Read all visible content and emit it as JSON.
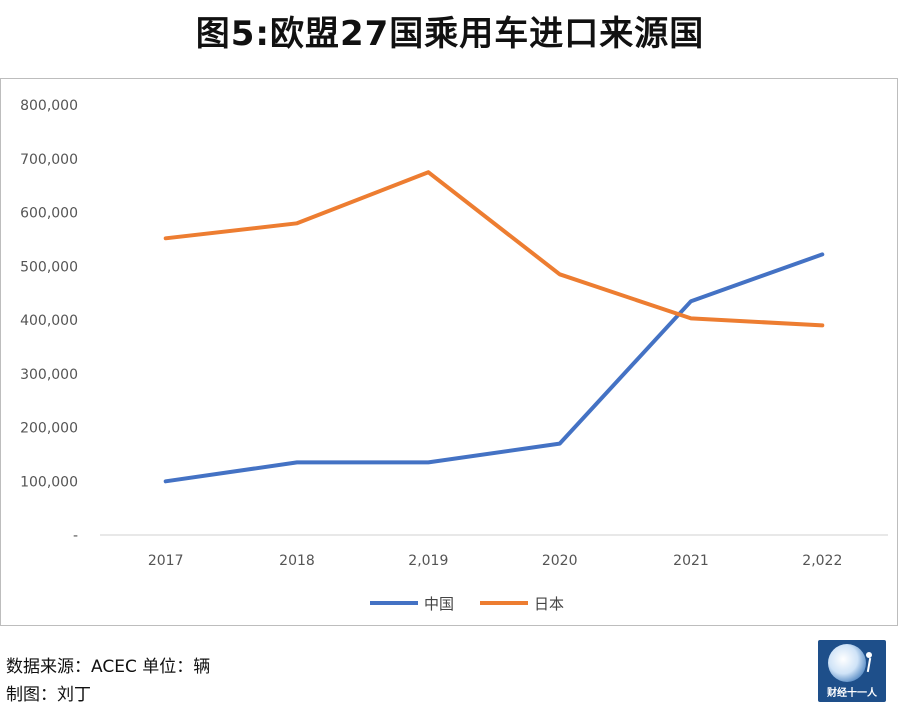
{
  "title": "图5:欧盟27国乘用车进口来源国",
  "footer": {
    "source": "数据来源：ACEC   单位：辆",
    "author": "制图：刘丁"
  },
  "logo": {
    "text": "财经十一人",
    "icon": "globe-icon"
  },
  "colors": {
    "china": "#4472C4",
    "japan": "#ED7D31"
  },
  "chart_data": {
    "type": "line",
    "title": "图5:欧盟27国乘用车进口来源国",
    "categories": [
      "2017",
      "2018",
      "2,019",
      "2020",
      "2021",
      "2,022"
    ],
    "series": [
      {
        "name": "中国",
        "color": "#4472C4",
        "values": [
          100000,
          135000,
          135000,
          170000,
          435000,
          522000
        ]
      },
      {
        "name": "日本",
        "color": "#ED7D31",
        "values": [
          552000,
          580000,
          675000,
          485000,
          403000,
          390000
        ]
      }
    ],
    "ylim": [
      0,
      800000
    ],
    "yticks": [
      0,
      100000,
      200000,
      300000,
      400000,
      500000,
      600000,
      700000,
      800000
    ],
    "ytick_labels": [
      "-",
      "100,000",
      "200,000",
      "300,000",
      "400,000",
      "500,000",
      "600,000",
      "700,000",
      "800,000"
    ],
    "xlabel": "",
    "ylabel": "",
    "grid": false,
    "legend": "bottom"
  }
}
